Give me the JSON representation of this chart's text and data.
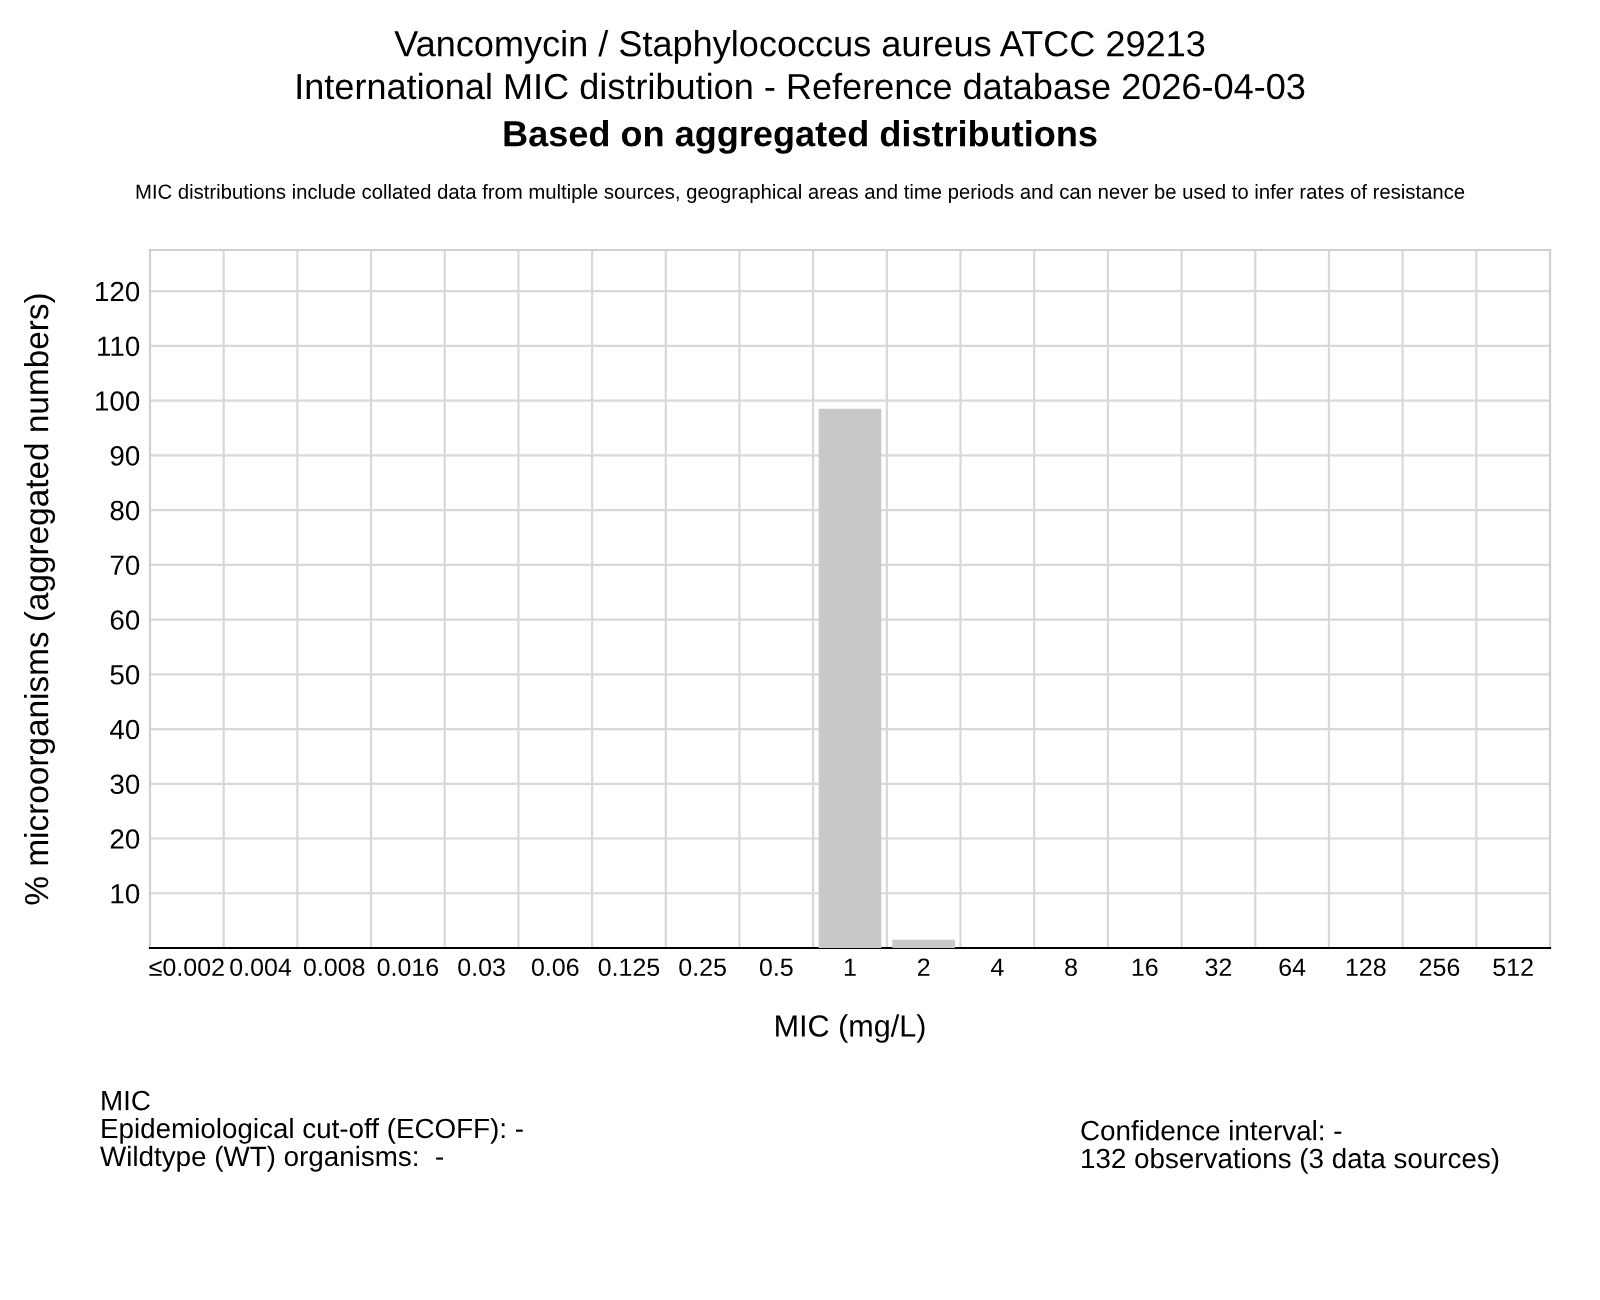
{
  "chart_data": {
    "type": "bar",
    "title": "Vancomycin / Staphylococcus aureus ATCC 29213\nInternational MIC distribution - Reference database 2026-04-03",
    "subtitle": "Based on aggregated distributions",
    "annotations": [
      "MIC distributions include collated data from multiple sources, geographical areas and time periods and can never be used to infer rates of resistance",
      "MIC\nEpidemiological cut-off (ECOFF): -\nWildtype (WT) organisms:  -",
      "Confidence interval: -\n132 observations (3 data sources)"
    ],
    "categories": [
      "≤0.002",
      "0.004",
      "0.008",
      "0.016",
      "0.03",
      "0.06",
      "0.125",
      "0.25",
      "0.5",
      "1",
      "2",
      "4",
      "8",
      "16",
      "32",
      "64",
      "128",
      "256",
      "512"
    ],
    "values": [
      0,
      0,
      0,
      0,
      0,
      0,
      0,
      0,
      0,
      98.5,
      1.5,
      0,
      0,
      0,
      0,
      0,
      0,
      0,
      0
    ],
    "color": "#c8c8c8",
    "xlabel": "MIC (mg/L)",
    "ylabel": "% microorganisms (aggregated numbers)",
    "ylim": [
      0,
      127.5
    ],
    "yticks": [
      10,
      20,
      30,
      40,
      50,
      60,
      70,
      80,
      90,
      100,
      110,
      120
    ],
    "grid": true
  }
}
